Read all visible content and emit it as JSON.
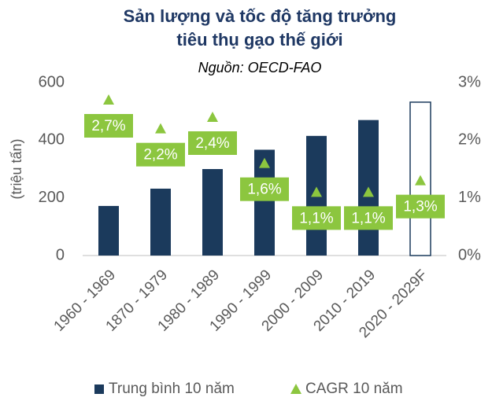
{
  "chart_data": {
    "type": "bar",
    "title": [
      "Sản lượng và tốc độ tăng trưởng",
      "tiêu thụ gạo thế giới"
    ],
    "subtitle": "Nguồn: OECD-FAO",
    "y_label": "(triệu tấn)",
    "categories": [
      "1960 - 1969",
      "1870 - 1979",
      "1980 - 1989",
      "1990 - 1999",
      "2000 - 2009",
      "2010 - 2019",
      "2020 - 2029F"
    ],
    "series": [
      {
        "name": "Trung bình 10 năm",
        "color": "#1b3a5c",
        "values": [
          172,
          232,
          300,
          367,
          415,
          470,
          532
        ],
        "bar_styles": [
          "solid",
          "solid",
          "solid",
          "solid",
          "solid",
          "solid",
          "outline"
        ]
      },
      {
        "name": "CAGR 10 năm",
        "color": "#8cc63f",
        "axis": "y2",
        "values": [
          2.7,
          2.2,
          2.4,
          1.6,
          1.1,
          1.1,
          1.3
        ],
        "value_labels": [
          "2,7%",
          "2,2%",
          "2,4%",
          "1,6%",
          "1,1%",
          "1,1%",
          "1,3%"
        ]
      }
    ],
    "ylim": [
      0,
      600
    ],
    "yticks": [
      0,
      200,
      400,
      600
    ],
    "y2lim": [
      0,
      3
    ],
    "y2ticks": [
      {
        "value": 0,
        "label": "0%"
      },
      {
        "value": 1,
        "label": "1%"
      },
      {
        "value": 2,
        "label": "2%"
      },
      {
        "value": 3,
        "label": "3%"
      }
    ],
    "legend": "bottom"
  }
}
